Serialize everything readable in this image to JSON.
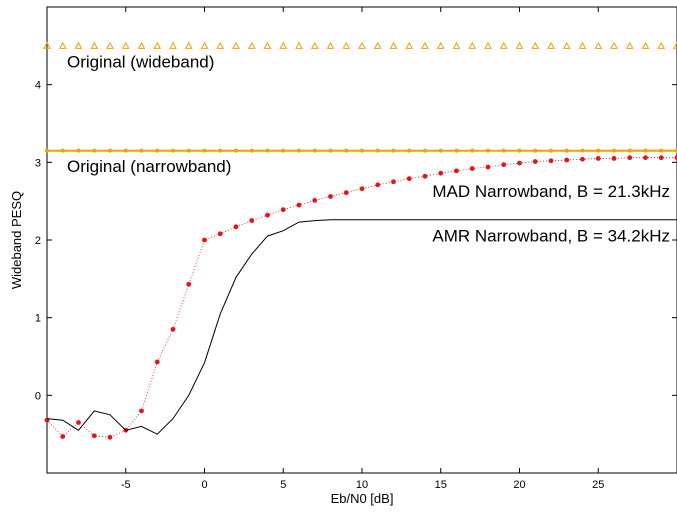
{
  "chart_data": {
    "type": "line",
    "title": "",
    "xlabel": "Eb/N0 [dB]",
    "ylabel": "Wideband PESQ",
    "xlim": [
      -10,
      30
    ],
    "ylim": [
      -1,
      5
    ],
    "xticks": [
      -5,
      0,
      5,
      10,
      15,
      20,
      25
    ],
    "yticks": [
      0,
      1,
      2,
      3,
      4
    ],
    "grid": false,
    "legend": "none",
    "series": [
      {
        "name": "Original (wideband)",
        "color": "#f5a000",
        "style": "triangle-markers",
        "x": [
          -10,
          -9,
          -8,
          -7,
          -6,
          -5,
          -4,
          -3,
          -2,
          -1,
          0,
          1,
          2,
          3,
          4,
          5,
          6,
          7,
          8,
          9,
          10,
          11,
          12,
          13,
          14,
          15,
          16,
          17,
          18,
          19,
          20,
          21,
          22,
          23,
          24,
          25,
          26,
          27,
          28,
          29,
          30
        ],
        "y": [
          4.5,
          4.5,
          4.5,
          4.5,
          4.5,
          4.5,
          4.5,
          4.5,
          4.5,
          4.5,
          4.5,
          4.5,
          4.5,
          4.5,
          4.5,
          4.5,
          4.5,
          4.5,
          4.5,
          4.5,
          4.5,
          4.5,
          4.5,
          4.5,
          4.5,
          4.5,
          4.5,
          4.5,
          4.5,
          4.5,
          4.5,
          4.5,
          4.5,
          4.5,
          4.5,
          4.5,
          4.5,
          4.5,
          4.5,
          4.5,
          4.5
        ]
      },
      {
        "name": "Original (narrowband)",
        "color": "#f5a000",
        "style": "line-dot-markers",
        "x": [
          -10,
          -9,
          -8,
          -7,
          -6,
          -5,
          -4,
          -3,
          -2,
          -1,
          0,
          1,
          2,
          3,
          4,
          5,
          6,
          7,
          8,
          9,
          10,
          11,
          12,
          13,
          14,
          15,
          16,
          17,
          18,
          19,
          20,
          21,
          22,
          23,
          24,
          25,
          26,
          27,
          28,
          29,
          30
        ],
        "y": [
          3.15,
          3.15,
          3.15,
          3.15,
          3.15,
          3.15,
          3.15,
          3.15,
          3.15,
          3.15,
          3.15,
          3.15,
          3.15,
          3.15,
          3.15,
          3.15,
          3.15,
          3.15,
          3.15,
          3.15,
          3.15,
          3.15,
          3.15,
          3.15,
          3.15,
          3.15,
          3.15,
          3.15,
          3.15,
          3.15,
          3.15,
          3.15,
          3.15,
          3.15,
          3.15,
          3.15,
          3.15,
          3.15,
          3.15,
          3.15,
          3.15
        ]
      },
      {
        "name": "MAD Narrowband, B = 21.3kHz",
        "color": "#ee1111",
        "style": "dotted-dot-markers",
        "x": [
          -10,
          -9,
          -8,
          -7,
          -6,
          -5,
          -4,
          -3,
          -2,
          -1,
          0,
          1,
          2,
          3,
          4,
          5,
          6,
          7,
          8,
          9,
          10,
          11,
          12,
          13,
          14,
          15,
          16,
          17,
          18,
          19,
          20,
          21,
          22,
          23,
          24,
          25,
          26,
          27,
          28,
          29,
          30
        ],
        "y": [
          -0.32,
          -0.53,
          -0.35,
          -0.52,
          -0.54,
          -0.45,
          -0.2,
          0.43,
          0.85,
          1.43,
          2.0,
          2.08,
          2.17,
          2.25,
          2.32,
          2.39,
          2.45,
          2.51,
          2.56,
          2.61,
          2.66,
          2.71,
          2.75,
          2.79,
          2.82,
          2.86,
          2.89,
          2.92,
          2.94,
          2.97,
          2.99,
          3.01,
          3.02,
          3.03,
          3.04,
          3.05,
          3.05,
          3.06,
          3.06,
          3.06,
          3.06
        ]
      },
      {
        "name": "AMR Narrowband, B = 34.2kHz",
        "color": "#000000",
        "style": "solid",
        "x": [
          -10,
          -9,
          -8,
          -7,
          -6,
          -5,
          -4,
          -3,
          -2,
          -1,
          0,
          1,
          2,
          3,
          4,
          5,
          6,
          7,
          8,
          9,
          10,
          11,
          12,
          13,
          14,
          15,
          16,
          17,
          18,
          19,
          20,
          21,
          22,
          23,
          24,
          25,
          26,
          27,
          28,
          29,
          30
        ],
        "y": [
          -0.3,
          -0.32,
          -0.45,
          -0.2,
          -0.25,
          -0.45,
          -0.4,
          -0.5,
          -0.3,
          0.0,
          0.42,
          1.05,
          1.52,
          1.82,
          2.05,
          2.12,
          2.23,
          2.25,
          2.26,
          2.26,
          2.26,
          2.26,
          2.26,
          2.26,
          2.26,
          2.26,
          2.26,
          2.26,
          2.26,
          2.26,
          2.26,
          2.26,
          2.26,
          2.26,
          2.26,
          2.26,
          2.26,
          2.26,
          2.26,
          2.26,
          2.26
        ]
      }
    ],
    "annotations": [
      {
        "text": "Original (wideband)",
        "x": -10,
        "y": 4.3
      },
      {
        "text": "Original (narrowband)",
        "x": -10,
        "y": 2.95
      },
      {
        "text": "MAD Narrowband, B = 21.3kHz",
        "x": 30,
        "y": 2.63
      },
      {
        "text": "AMR Narrowband, B = 34.2kHz",
        "x": 30,
        "y": 2.06
      }
    ]
  }
}
